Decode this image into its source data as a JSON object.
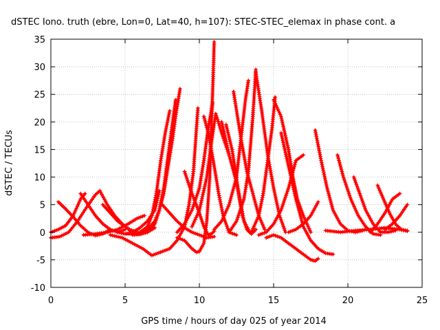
{
  "chart_data": {
    "type": "scatter",
    "title": "dSTEC Iono. truth (ebre, Lon=0, Lat=40, h=107): STEC-STEC_elemax in phase cont. a",
    "xlabel": "GPS time / hours of day 025 of year 2014",
    "ylabel": "dSTEC  / TECUs",
    "xlim": [
      0,
      25
    ],
    "ylim": [
      -10,
      35
    ],
    "xticks": [
      0,
      5,
      10,
      15,
      20,
      25
    ],
    "yticks": [
      -10,
      -5,
      0,
      5,
      10,
      15,
      20,
      25,
      30,
      35
    ],
    "grid": true,
    "marker": "+",
    "color": "#ff0000",
    "series": [
      {
        "x": [
          0.0,
          0.5,
          1.0,
          1.5,
          2.0,
          2.3
        ],
        "y": [
          0.0,
          0.5,
          1.2,
          3.0,
          6.0,
          7.0
        ]
      },
      {
        "x": [
          0.0,
          0.6,
          1.2,
          1.8,
          2.4,
          3.0,
          3.3
        ],
        "y": [
          -1.0,
          -0.8,
          0.0,
          2.0,
          4.5,
          6.8,
          7.5
        ]
      },
      {
        "x": [
          0.5,
          1.0,
          1.5,
          2.0,
          2.5,
          3.0,
          3.5,
          4.0
        ],
        "y": [
          5.5,
          4.2,
          2.8,
          1.2,
          0.0,
          -0.6,
          -0.3,
          0.5
        ]
      },
      {
        "x": [
          2.0,
          2.5,
          3.0,
          3.5,
          4.0,
          4.5,
          5.0
        ],
        "y": [
          7.0,
          5.0,
          3.0,
          1.5,
          0.5,
          0.0,
          0.5
        ]
      },
      {
        "x": [
          2.2,
          3.0,
          3.8,
          4.5,
          5.2,
          5.8,
          6.3
        ],
        "y": [
          -0.5,
          -0.3,
          0.0,
          0.5,
          1.5,
          2.5,
          3.0
        ]
      },
      {
        "x": [
          3.5,
          4.0,
          4.5,
          5.0,
          5.5,
          6.0,
          6.5,
          7.0
        ],
        "y": [
          5.0,
          3.5,
          2.0,
          1.0,
          0.0,
          -0.3,
          0.0,
          0.8
        ]
      },
      {
        "x": [
          3.3,
          3.8,
          4.3,
          4.8,
          5.3,
          5.8
        ],
        "y": [
          7.5,
          5.0,
          3.0,
          1.5,
          0.5,
          0.0
        ]
      },
      {
        "x": [
          4.5,
          5.0,
          5.5,
          6.0,
          6.5,
          7.0,
          7.3
        ],
        "y": [
          0.0,
          -0.3,
          0.0,
          0.8,
          2.0,
          4.0,
          7.5
        ]
      },
      {
        "x": [
          4.0,
          4.8,
          5.5,
          6.2,
          6.8,
          7.5
        ],
        "y": [
          -0.5,
          -1.0,
          -2.0,
          -3.0,
          -4.2,
          -3.5
        ]
      },
      {
        "x": [
          5.0,
          5.5,
          6.0,
          6.5,
          6.8,
          7.1,
          7.4,
          7.7,
          8.0
        ],
        "y": [
          -0.3,
          -0.3,
          0.0,
          1.0,
          3.0,
          7.0,
          13.0,
          18.0,
          22.0
        ]
      },
      {
        "x": [
          5.5,
          6.0,
          6.5,
          7.0,
          7.3,
          7.6,
          7.9,
          8.2,
          8.4
        ],
        "y": [
          -0.5,
          -0.4,
          0.0,
          1.5,
          4.0,
          8.0,
          14.0,
          20.0,
          24.0
        ]
      },
      {
        "x": [
          6.0,
          6.5,
          7.0,
          7.3,
          7.6,
          7.9,
          8.2,
          8.4,
          8.7
        ],
        "y": [
          -0.2,
          0.5,
          2.0,
          4.0,
          7.0,
          12.0,
          17.0,
          21.0,
          26.0
        ]
      },
      {
        "x": [
          7.5,
          8.0,
          8.5,
          9.0,
          9.5,
          10.0,
          10.5,
          11.0
        ],
        "y": [
          5.0,
          3.5,
          2.0,
          0.8,
          0.0,
          -0.5,
          -1.0,
          -0.8
        ]
      },
      {
        "x": [
          7.5,
          8.0,
          8.5,
          9.0,
          9.3,
          9.6,
          9.9
        ],
        "y": [
          -3.5,
          -3.0,
          -1.5,
          1.0,
          5.0,
          11.0,
          22.5
        ]
      },
      {
        "x": [
          8.5,
          9.0,
          9.5,
          10.0,
          10.3,
          10.6,
          10.9
        ],
        "y": [
          0.0,
          1.5,
          4.0,
          8.0,
          13.0,
          19.0,
          23.5
        ]
      },
      {
        "x": [
          9.0,
          9.5,
          10.0,
          10.3,
          10.6,
          10.8,
          11.0
        ],
        "y": [
          11.0,
          7.0,
          3.5,
          1.0,
          -0.5,
          -0.3,
          0.2
        ]
      },
      {
        "x": [
          9.5,
          10.0,
          10.5,
          10.8,
          11.1,
          11.5,
          12.0
        ],
        "y": [
          1.0,
          4.0,
          10.0,
          16.0,
          21.5,
          18.0,
          14.0
        ]
      },
      {
        "x": [
          8.5,
          9.0,
          9.5,
          9.8,
          10.0,
          10.3,
          10.5,
          10.7,
          10.9,
          11.0
        ],
        "y": [
          -1.0,
          -1.5,
          -3.0,
          -3.6,
          -3.5,
          -2.0,
          2.0,
          10.0,
          26.0,
          34.5
        ]
      },
      {
        "x": [
          10.3,
          10.6,
          11.0,
          11.3,
          11.6,
          12.0,
          12.5
        ],
        "y": [
          21.0,
          18.0,
          12.0,
          7.0,
          3.0,
          0.0,
          -0.5
        ]
      },
      {
        "x": [
          11.0,
          11.5,
          12.0,
          12.5,
          12.8,
          13.1,
          13.3
        ],
        "y": [
          0.5,
          2.0,
          5.0,
          10.0,
          17.0,
          24.0,
          27.5
        ]
      },
      {
        "x": [
          11.5,
          12.0,
          12.5,
          12.7,
          12.9,
          13.2,
          13.5,
          13.8
        ],
        "y": [
          20.0,
          14.0,
          9.0,
          6.0,
          3.0,
          0.5,
          -0.3,
          0.5
        ]
      },
      {
        "x": [
          11.8,
          12.2,
          12.6,
          13.0,
          13.3
        ],
        "y": [
          19.5,
          15.0,
          8.0,
          2.0,
          0.5
        ]
      },
      {
        "x": [
          12.0,
          12.5,
          13.0,
          13.3,
          13.6,
          13.8
        ],
        "y": [
          0.0,
          2.0,
          6.0,
          11.0,
          21.0,
          29.5
        ]
      },
      {
        "x": [
          12.3,
          12.8,
          13.2,
          13.6,
          14.0,
          14.4
        ],
        "y": [
          25.5,
          17.0,
          11.0,
          7.0,
          3.0,
          0.5
        ]
      },
      {
        "x": [
          13.8,
          14.2,
          14.6,
          15.0,
          15.4,
          15.8
        ],
        "y": [
          29.0,
          22.0,
          14.0,
          8.0,
          3.0,
          0.0
        ]
      },
      {
        "x": [
          13.5,
          14.0,
          14.3,
          14.6,
          14.9,
          15.1
        ],
        "y": [
          0.0,
          3.0,
          7.0,
          13.0,
          19.0,
          24.5
        ]
      },
      {
        "x": [
          15.0,
          15.5,
          16.0,
          16.3,
          16.6,
          17.0,
          17.5
        ],
        "y": [
          24.0,
          21.0,
          15.0,
          10.0,
          6.0,
          3.0,
          0.0
        ]
      },
      {
        "x": [
          14.0,
          14.5,
          15.0,
          15.5,
          16.0,
          16.5,
          17.0
        ],
        "y": [
          -0.5,
          0.0,
          1.5,
          4.0,
          8.0,
          13.0,
          14.0
        ]
      },
      {
        "x": [
          15.5,
          16.0,
          16.5,
          17.0,
          17.5,
          18.0,
          18.5,
          19.0
        ],
        "y": [
          18.0,
          12.0,
          6.0,
          1.0,
          -1.5,
          -3.0,
          -3.8,
          -4.0
        ]
      },
      {
        "x": [
          14.5,
          15.0,
          15.5,
          16.0,
          16.5,
          17.0,
          17.5,
          17.8,
          18.0
        ],
        "y": [
          -1.0,
          -0.5,
          -1.0,
          -2.0,
          -3.0,
          -4.0,
          -5.0,
          -5.2,
          -4.8
        ]
      },
      {
        "x": [
          17.8,
          18.2,
          18.6,
          19.0,
          19.5,
          20.0,
          20.5,
          21.0
        ],
        "y": [
          18.5,
          13.0,
          8.0,
          4.0,
          1.5,
          0.3,
          0.0,
          0.3
        ]
      },
      {
        "x": [
          16.0,
          16.5,
          17.0,
          17.5,
          18.0
        ],
        "y": [
          0.0,
          0.5,
          1.5,
          3.0,
          5.5
        ]
      },
      {
        "x": [
          19.3,
          19.7,
          20.2,
          20.7,
          21.2,
          21.7,
          22.2
        ],
        "y": [
          14.0,
          10.0,
          6.0,
          3.0,
          1.0,
          -0.3,
          -0.5
        ]
      },
      {
        "x": [
          20.4,
          20.8,
          21.2,
          21.7,
          22.2,
          22.7,
          23.2
        ],
        "y": [
          10.0,
          7.0,
          4.0,
          1.5,
          0.0,
          0.0,
          0.3
        ]
      },
      {
        "x": [
          21.5,
          22.0,
          22.5,
          23.0,
          23.5
        ],
        "y": [
          0.0,
          1.5,
          3.5,
          6.0,
          7.0
        ]
      },
      {
        "x": [
          22.0,
          22.4,
          22.8,
          23.2,
          23.6,
          24.0
        ],
        "y": [
          8.5,
          6.0,
          3.5,
          1.5,
          0.5,
          0.2
        ]
      },
      {
        "x": [
          22.5,
          23.0,
          23.5,
          24.0
        ],
        "y": [
          0.5,
          1.5,
          3.0,
          5.0
        ]
      },
      {
        "x": [
          18.5,
          19.5,
          20.5,
          21.5,
          22.5,
          23.5,
          24.0
        ],
        "y": [
          0.3,
          0.0,
          0.3,
          0.5,
          0.8,
          0.5,
          0.3
        ]
      }
    ]
  }
}
